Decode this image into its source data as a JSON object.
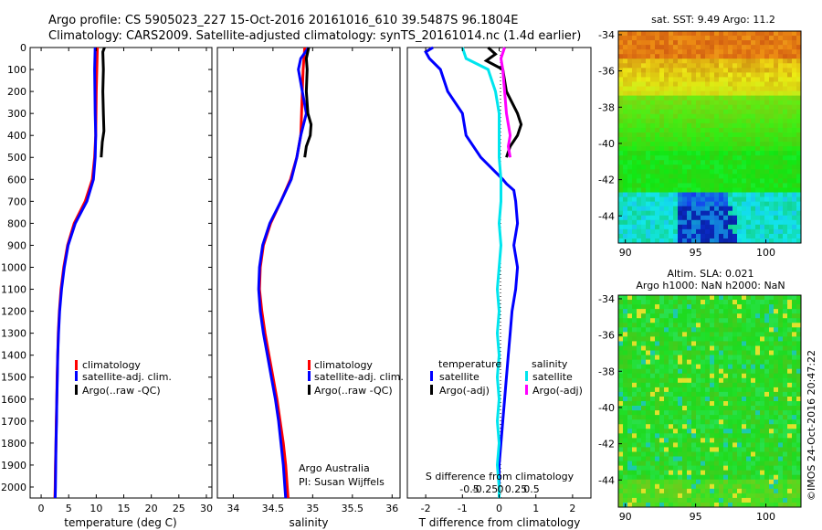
{
  "header": {
    "line1": "Argo profile: CS 5905023_227 15-Oct-2016 20161016_610 39.5487S 96.1804E",
    "line2": "Climatology: CARS2009. Satellite-adjusted climatology: synTS_20161014.nc (1.4d earlier)"
  },
  "colors": {
    "climatology": "#ff0000",
    "satellite": "#0000ff",
    "argo": "#000000",
    "sal_satellite": "#00e5ee",
    "sal_argo": "#ff00ff"
  },
  "depth_ticks": [
    "0",
    "100",
    "200",
    "300",
    "400",
    "500",
    "600",
    "700",
    "800",
    "900",
    "1000",
    "1100",
    "1200",
    "1300",
    "1400",
    "1500",
    "1600",
    "1700",
    "1800",
    "1900",
    "2000"
  ],
  "chart_data": [
    {
      "type": "line",
      "id": "temperature",
      "xlabel": "temperature (deg C)",
      "ylabel": "",
      "xlim": [
        -2,
        31
      ],
      "ylim": [
        2050,
        0
      ],
      "x_ticks": [
        "0",
        "5",
        "10",
        "15",
        "20",
        "25",
        "30"
      ],
      "x_tick_values": [
        0,
        5,
        10,
        15,
        20,
        25,
        30
      ],
      "legend": [
        "climatology",
        "satellite-adj. clim.",
        "Argo(..raw -QC)"
      ],
      "series": [
        {
          "name": "climatology",
          "color_key": "climatology",
          "depth": [
            0,
            100,
            200,
            300,
            400,
            500,
            600,
            700,
            800,
            900,
            1000,
            1100,
            1200,
            1300,
            1400,
            1500,
            1600,
            1700,
            1800,
            1900,
            2000,
            2050
          ],
          "values": [
            10.2,
            10.1,
            10.0,
            9.95,
            9.9,
            9.7,
            9.3,
            8.0,
            6.0,
            4.8,
            4.1,
            3.6,
            3.3,
            3.1,
            3.0,
            2.9,
            2.85,
            2.75,
            2.7,
            2.6,
            2.55,
            2.5
          ]
        },
        {
          "name": "satellite-adj. clim.",
          "color_key": "satellite",
          "depth": [
            0,
            100,
            200,
            300,
            400,
            500,
            600,
            700,
            800,
            900,
            1000,
            1100,
            1200,
            1300,
            1400,
            1500,
            1600,
            1700,
            1800,
            1900,
            2000,
            2050
          ],
          "values": [
            9.8,
            9.7,
            9.75,
            9.8,
            9.9,
            9.8,
            9.5,
            8.3,
            6.2,
            4.9,
            4.2,
            3.7,
            3.35,
            3.15,
            3.0,
            2.95,
            2.85,
            2.8,
            2.7,
            2.65,
            2.6,
            2.55
          ]
        },
        {
          "name": "Argo(..raw -QC)",
          "color_key": "argo",
          "depth": [
            0,
            20,
            100,
            200,
            300,
            380,
            430,
            500
          ],
          "values": [
            11.5,
            11.2,
            11.3,
            11.2,
            11.3,
            11.4,
            11.1,
            10.9
          ]
        }
      ]
    },
    {
      "type": "line",
      "id": "salinity",
      "xlabel": "salinity",
      "ylabel": "",
      "xlim": [
        33.8,
        36.1
      ],
      "ylim": [
        2050,
        0
      ],
      "x_ticks": [
        "34",
        "34.5",
        "35",
        "35.5",
        "36"
      ],
      "x_tick_values": [
        34,
        34.5,
        35,
        35.5,
        36
      ],
      "legend": [
        "climatology",
        "satellite-adj. clim.",
        "Argo(..raw -QC)"
      ],
      "annotations": [
        "Argo Australia",
        "PI: Susan Wijffels"
      ],
      "series": [
        {
          "name": "climatology",
          "color_key": "climatology",
          "depth": [
            0,
            100,
            200,
            300,
            400,
            500,
            600,
            700,
            800,
            900,
            1000,
            1100,
            1200,
            1300,
            1400,
            1500,
            1600,
            1700,
            1800,
            1900,
            2000,
            2050
          ],
          "values": [
            34.9,
            34.88,
            34.87,
            34.86,
            34.85,
            34.8,
            34.72,
            34.6,
            34.47,
            34.38,
            34.34,
            34.33,
            34.36,
            34.4,
            34.45,
            34.5,
            34.55,
            34.59,
            34.63,
            34.66,
            34.68,
            34.69
          ]
        },
        {
          "name": "satellite-adj. clim.",
          "color_key": "satellite",
          "depth": [
            0,
            50,
            100,
            200,
            300,
            400,
            500,
            600,
            700,
            800,
            900,
            1000,
            1100,
            1200,
            1300,
            1400,
            1500,
            1600,
            1700,
            1800,
            1900,
            2000,
            2050
          ],
          "values": [
            34.95,
            34.85,
            34.82,
            34.87,
            34.92,
            34.85,
            34.8,
            34.73,
            34.6,
            34.46,
            34.37,
            34.33,
            34.32,
            34.34,
            34.38,
            34.43,
            34.48,
            34.53,
            34.57,
            34.6,
            34.63,
            34.65,
            34.66
          ]
        },
        {
          "name": "Argo(..raw -QC)",
          "color_key": "argo",
          "depth": [
            0,
            50,
            100,
            200,
            300,
            350,
            400,
            450,
            500
          ],
          "values": [
            34.95,
            34.92,
            34.93,
            34.92,
            34.94,
            34.98,
            34.97,
            34.92,
            34.9
          ]
        }
      ]
    },
    {
      "type": "line",
      "id": "difference",
      "xlabel": "T difference from climatology",
      "xlabel_top": "S difference from climatology",
      "ylim": [
        2050,
        0
      ],
      "t_xlim": [
        -2.5,
        2.5
      ],
      "t_ticks": [
        "-2",
        "-1",
        "0",
        "1",
        "2"
      ],
      "t_tick_values": [
        -2,
        -1,
        0,
        1,
        2
      ],
      "s_ticks": [
        "-0.5",
        "-0.25",
        "0",
        "0.25",
        "0.5"
      ],
      "s_tick_values": [
        -0.5,
        -0.25,
        0,
        0.25,
        0.5
      ],
      "legend_left_title": "temperature",
      "legend_right_title": "salinity",
      "legend": [
        "satellite",
        "Argo(-adj)",
        "satellite",
        "Argo(-adj)"
      ],
      "series": [
        {
          "name": "satellite",
          "kind": "temperature",
          "color_key": "satellite",
          "depth": [
            0,
            20,
            50,
            100,
            200,
            300,
            400,
            500,
            550,
            600,
            620,
            650,
            700,
            800,
            900,
            1000,
            1100,
            1200,
            1300,
            1400,
            1500,
            1600,
            1700,
            1800,
            1900,
            2000,
            2050
          ],
          "values": [
            -1.8,
            -2.0,
            -1.9,
            -1.6,
            -1.4,
            -1.0,
            -0.9,
            -0.5,
            -0.2,
            0.1,
            0.2,
            0.4,
            0.45,
            0.5,
            0.4,
            0.5,
            0.45,
            0.35,
            0.3,
            0.25,
            0.2,
            0.15,
            0.1,
            0.05,
            0.0,
            0.0,
            0.0
          ]
        },
        {
          "name": "satellite",
          "kind": "salinity",
          "color_key": "sal_satellite",
          "depth": [
            0,
            50,
            100,
            200,
            300,
            400,
            500,
            600,
            700,
            800,
            900,
            1000,
            1100,
            1200,
            1300,
            1400,
            1500,
            1600,
            1700,
            1800,
            1900,
            2000,
            2050
          ],
          "values": [
            -1.0,
            -0.9,
            -0.3,
            -0.1,
            0.0,
            0.0,
            0.0,
            0.05,
            0.05,
            0.0,
            0.05,
            0.0,
            -0.05,
            0.0,
            -0.05,
            0.0,
            -0.05,
            0.0,
            -0.05,
            0.0,
            -0.05,
            0.0,
            0.0
          ]
        },
        {
          "name": "Argo(-adj)",
          "kind": "temperature",
          "color_key": "argo",
          "depth": [
            0,
            30,
            60,
            100,
            200,
            300,
            350,
            400,
            450,
            500
          ],
          "values": [
            -0.3,
            -0.1,
            -0.35,
            0.1,
            0.2,
            0.5,
            0.6,
            0.5,
            0.3,
            0.2
          ]
        },
        {
          "name": "Argo(-adj)",
          "kind": "salinity",
          "color_key": "sal_argo",
          "depth": [
            0,
            50,
            100,
            200,
            300,
            400,
            450,
            500
          ],
          "values": [
            0.15,
            0.05,
            0.1,
            0.15,
            0.2,
            0.3,
            0.25,
            0.3
          ]
        }
      ]
    },
    {
      "type": "heatmap",
      "id": "sst-map",
      "title": "sat. SST: 9.49  Argo: 11.2",
      "x_ticks": [
        "90",
        "95",
        "100"
      ],
      "x_tick_values": [
        90,
        95,
        100
      ],
      "y_ticks": [
        "-34",
        "-36",
        "-38",
        "-40",
        "-42",
        "-44"
      ],
      "y_tick_values": [
        -34,
        -36,
        -38,
        -40,
        -42,
        -44
      ],
      "xlim": [
        89.5,
        102.5
      ],
      "ylim": [
        -45.5,
        -33.8
      ]
    },
    {
      "type": "heatmap",
      "id": "sla-map",
      "title": "Altim. SLA: 0.021",
      "subtitle": "Argo h1000: NaN  h2000: NaN",
      "x_ticks": [
        "90",
        "95",
        "100"
      ],
      "x_tick_values": [
        90,
        95,
        100
      ],
      "y_ticks": [
        "-34",
        "-36",
        "-38",
        "-40",
        "-42",
        "-44"
      ],
      "y_tick_values": [
        -34,
        -36,
        -38,
        -40,
        -42,
        -44
      ],
      "xlim": [
        89.5,
        102.5
      ],
      "ylim": [
        -45.5,
        -33.8
      ]
    }
  ],
  "footer": {
    "stamp": "©IMOS 24-Oct-2016 20:47:22"
  }
}
